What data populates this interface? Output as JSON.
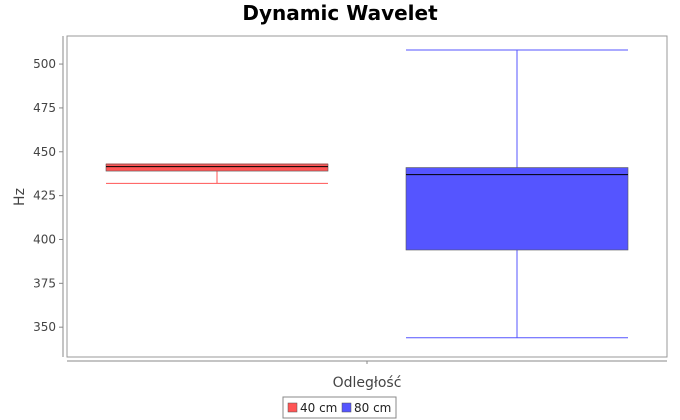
{
  "chart_data": {
    "type": "boxplot",
    "title": "Dynamic Wavelet",
    "xlabel": "Odległość",
    "ylabel": "Hz",
    "ylim": [
      333,
      516
    ],
    "yticks": [
      350,
      375,
      400,
      425,
      450,
      475,
      500
    ],
    "grid": false,
    "legend_position": "bottom-center",
    "series": [
      {
        "name": "40 cm",
        "color": "#ff5555",
        "whisker_color": "#ff5555",
        "min": 432,
        "q1": 439,
        "median": 441.5,
        "q3": 443,
        "max": 443
      },
      {
        "name": "80 cm",
        "color": "#5555ff",
        "whisker_color": "#5555ff",
        "min": 344,
        "q1": 394,
        "median": 437,
        "q3": 441,
        "max": 508
      }
    ]
  }
}
